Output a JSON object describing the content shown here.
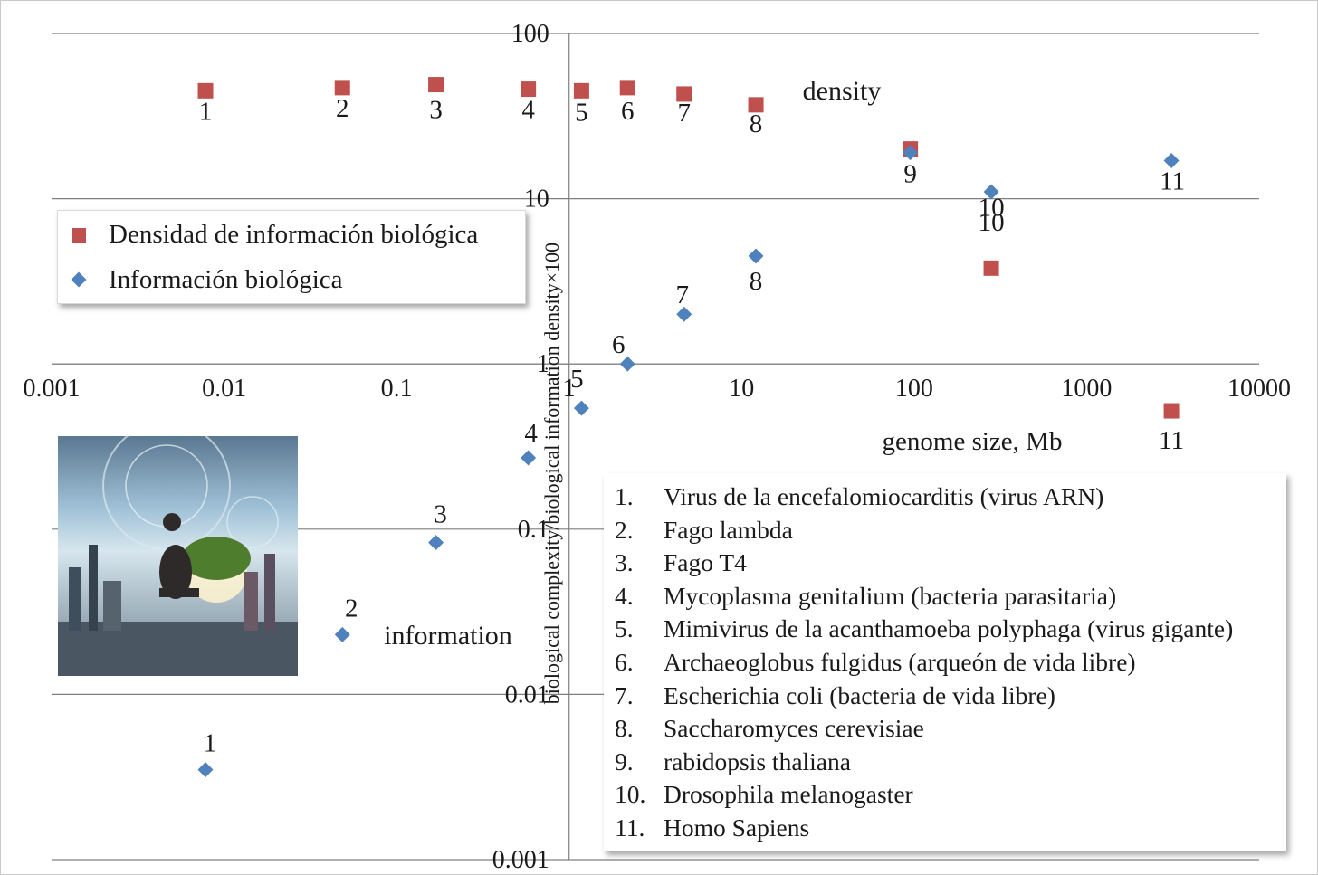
{
  "chart_data": {
    "type": "scatter",
    "xscale": "log",
    "yscale": "log",
    "xlim": [
      0.001,
      10000
    ],
    "ylim": [
      0.001,
      100
    ],
    "xlabel": "genome size, Mb",
    "ylabel": "biological complexity/biological information density×100",
    "x_tick_labels": [
      "0.001",
      "0.01",
      "0.1",
      "1",
      "10",
      "100",
      "1000",
      "10000"
    ],
    "y_tick_labels": [
      "0.001",
      "0.01",
      "0.1",
      "1",
      "10",
      "100"
    ],
    "grid": true,
    "annotations": [
      "density",
      "information"
    ],
    "series": [
      {
        "name": "Densidad de información biológica",
        "marker": "square",
        "color": "#c0504d",
        "points": [
          {
            "label": "1",
            "x": 0.0078,
            "y": 45
          },
          {
            "label": "2",
            "x": 0.0485,
            "y": 47
          },
          {
            "label": "3",
            "x": 0.169,
            "y": 49
          },
          {
            "label": "4",
            "x": 0.58,
            "y": 46
          },
          {
            "label": "5",
            "x": 1.18,
            "y": 45
          },
          {
            "label": "6",
            "x": 2.18,
            "y": 47
          },
          {
            "label": "7",
            "x": 4.64,
            "y": 43
          },
          {
            "label": "8",
            "x": 12.1,
            "y": 37
          },
          {
            "label": "9",
            "x": 95,
            "y": 20
          },
          {
            "label": "10",
            "x": 280,
            "y": 3.8
          },
          {
            "label": "11",
            "x": 3100,
            "y": 0.52
          }
        ]
      },
      {
        "name": "Información biológica",
        "marker": "diamond",
        "color": "#4f81bd",
        "points": [
          {
            "label": "1",
            "x": 0.0078,
            "y": 0.0035
          },
          {
            "label": "2",
            "x": 0.0485,
            "y": 0.023
          },
          {
            "label": "3",
            "x": 0.169,
            "y": 0.083
          },
          {
            "label": "4",
            "x": 0.58,
            "y": 0.27
          },
          {
            "label": "5",
            "x": 1.18,
            "y": 0.54
          },
          {
            "label": "6",
            "x": 2.18,
            "y": 1.0
          },
          {
            "label": "7",
            "x": 4.64,
            "y": 2.0
          },
          {
            "label": "8",
            "x": 12.1,
            "y": 4.5
          },
          {
            "label": "9",
            "x": 95,
            "y": 19
          },
          {
            "label": "10",
            "x": 280,
            "y": 11
          },
          {
            "label": "11",
            "x": 3100,
            "y": 17
          }
        ]
      }
    ]
  },
  "legend": {
    "items": [
      {
        "label": "Densidad de información biológica",
        "marker": "square"
      },
      {
        "label": "Información biológica",
        "marker": "diamond"
      }
    ]
  },
  "organisms": [
    {
      "num": "1.",
      "name": "Virus de la encefalomiocarditis (virus ARN)"
    },
    {
      "num": "2.",
      "name": "Fago lambda"
    },
    {
      "num": "3.",
      "name": "Fago T4"
    },
    {
      "num": "4.",
      "name": "Mycoplasma genitalium (bacteria parasitaria)"
    },
    {
      "num": "5.",
      "name": "Mimivirus de la acanthamoeba polyphaga (virus gigante)"
    },
    {
      "num": "6.",
      "name": "Archaeoglobus fulgidus (arqueón de vida libre)"
    },
    {
      "num": "7.",
      "name": "Escherichia coli (bacteria de vida libre)"
    },
    {
      "num": "8.",
      "name": "Saccharomyces cerevisiae"
    },
    {
      "num": "9.",
      "name": "rabidopsis thaliana"
    },
    {
      "num": "10.",
      "name": "Drosophila melanogaster"
    },
    {
      "num": "11.",
      "name": "Homo Sapiens"
    }
  ]
}
